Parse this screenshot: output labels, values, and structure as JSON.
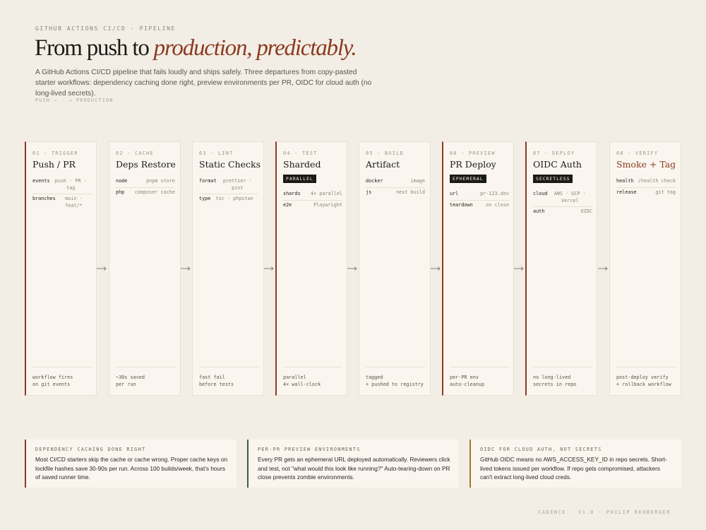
{
  "header": {
    "eyebrow": "GITHUB ACTIONS CI/CD · PIPELINE",
    "title_plain": "From push to ",
    "title_emph": "production, predictably.",
    "subtitle": "A GitHub Actions CI/CD pipeline that fails loudly and ships safely. Three departures from copy-pasted starter workflows: dependency caching done right, preview environments per PR, OIDC for cloud auth (no long-lived secrets).",
    "flow_label": "PUSH → · → PRODUCTION"
  },
  "stages": [
    {
      "num": "01 · TRIGGER",
      "name": "Push / PR",
      "rows": [
        {
          "k": "events",
          "v": "push · PR · tag"
        },
        {
          "k": "branches",
          "v": "main · feat/*"
        }
      ],
      "foot": [
        "workflow fires",
        "on git events"
      ]
    },
    {
      "num": "02 · CACHE",
      "name": "Deps Restore",
      "rows": [
        {
          "k": "node",
          "v": "pnpm store"
        },
        {
          "k": "php",
          "v": "composer cache"
        }
      ],
      "foot": [
        "~30s saved",
        "per run"
      ]
    },
    {
      "num": "03 · LINT",
      "name": "Static Checks",
      "rows": [
        {
          "k": "format",
          "v": "prettier · pint"
        },
        {
          "k": "type",
          "v": "tsc · phpstan"
        }
      ],
      "foot": [
        "fast fail",
        "before tests"
      ]
    },
    {
      "num": "04 · TEST",
      "name": "Sharded",
      "badge": "PARALLEL",
      "rows": [
        {
          "k": "shards",
          "v": "4× parallel"
        },
        {
          "k": "e2e",
          "v": "Playwright"
        }
      ],
      "foot": [
        "parallel",
        "4× wall-clock"
      ]
    },
    {
      "num": "05 · BUILD",
      "name": "Artifact",
      "rows": [
        {
          "k": "docker",
          "v": "image"
        },
        {
          "k": "js",
          "v": "next build"
        }
      ],
      "foot": [
        "tagged",
        "+ pushed to registry"
      ]
    },
    {
      "num": "06 · PREVIEW",
      "name": "PR Deploy",
      "badge": "EPHEMERAL",
      "rows": [
        {
          "k": "url",
          "v": "pr-123.dev"
        },
        {
          "k": "teardown",
          "v": "on close"
        }
      ],
      "foot": [
        "per-PR env",
        "auto-cleanup"
      ]
    },
    {
      "num": "07 · DEPLOY",
      "name": "OIDC Auth",
      "badge": "SECRETLESS",
      "rows": [
        {
          "k": "cloud",
          "v": "AWS · GCP · Vercel"
        },
        {
          "k": "auth",
          "v": "OIDC"
        }
      ],
      "foot": [
        "no long-lived",
        "secrets in repo"
      ]
    },
    {
      "num": "08 · VERIFY",
      "name": "Smoke + Tag",
      "rows": [
        {
          "k": "health",
          "v": "/health check"
        },
        {
          "k": "release",
          "v": "git tag"
        }
      ],
      "foot": [
        "post-deploy verify",
        "+ rollback workflow"
      ]
    }
  ],
  "cards": [
    {
      "title": "DEPENDENCY CACHING DONE RIGHT",
      "body": "Most CI/CD starters skip the cache or cache wrong. Proper cache keys on lockfile hashes save 30-90s per run. Across 100 builds/week, that's hours of saved runner time."
    },
    {
      "title": "PER-PR PREVIEW ENVIRONMENTS",
      "body": "Every PR gets an ephemeral URL deployed automatically. Reviewers click and test, not \"what would this look like running?\" Auto-tearing-down on PR close prevents zombie environments."
    },
    {
      "title": "OIDC FOR CLOUD AUTH, NOT SECRETS",
      "body": "GitHub OIDC means no AWS_ACCESS_KEY_ID in repo secrets. Short-lived tokens issued per workflow. If repo gets compromised, attackers can't extract long-lived cloud creds."
    }
  ],
  "footer": "CADENCE · V1.0 · PHILIP REHBERGER",
  "colors": {
    "accent": "#8a3a20",
    "gold": "#a07a2a",
    "green": "#4a5a3a",
    "ink": "#1c1a17",
    "paper": "#f3eee5"
  }
}
